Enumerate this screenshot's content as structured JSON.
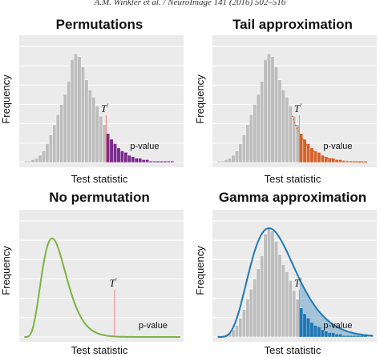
{
  "header": {
    "citation": "A.M. Winkler et al. / NeuroImage 141 (2016) 502–516"
  },
  "labels": {
    "statistic_marker": "T",
    "pvalue": "p-value"
  },
  "colors": {
    "bars": "#bdbdbd",
    "bar_edge": "#ffffff",
    "panel_bg": "#ebebeb",
    "grid": "#ffffff",
    "marker_line": "#f08080",
    "purple": "#7a2b8c",
    "orange": "#d4622a",
    "green": "#7cb342",
    "blue": "#1f78b4"
  },
  "chart_data": [
    {
      "type": "bar",
      "title": "Permutations",
      "xlabel": "Test statistic",
      "ylabel": "Frequency",
      "style": "histogram with right tail beyond T shaded purple",
      "values": [
        1,
        1,
        2,
        3,
        5,
        8,
        13,
        19,
        26,
        33,
        40,
        47,
        56,
        71,
        75,
        73,
        66,
        57,
        50,
        45,
        39,
        32,
        26,
        20,
        16,
        13,
        10,
        8,
        7,
        5,
        4,
        3,
        3,
        2,
        2,
        1,
        1,
        1,
        1,
        1,
        1,
        1
      ],
      "ylim": [
        0,
        80
      ],
      "observed_statistic_bin": 23,
      "tail_color": "purple"
    },
    {
      "type": "bar",
      "title": "Tail approximation",
      "xlabel": "Test statistic",
      "ylabel": "Frequency",
      "style": "histogram with generalized Pareto fit to the tail, shaded orange beyond T",
      "values": [
        1,
        1,
        2,
        3,
        5,
        8,
        13,
        19,
        26,
        33,
        40,
        47,
        56,
        71,
        75,
        73,
        66,
        57,
        50,
        45,
        39,
        32,
        26,
        20,
        16,
        13,
        10,
        8,
        7,
        5,
        4,
        3,
        3,
        2,
        2,
        1,
        1,
        1,
        1,
        1,
        1,
        1
      ],
      "ylim": [
        0,
        80
      ],
      "observed_statistic_bin": 23,
      "tail_color": "orange"
    },
    {
      "type": "area",
      "title": "No permutation",
      "xlabel": "Test statistic",
      "ylabel": "Frequency",
      "style": "parametric density curve only, area beyond T shaded green",
      "distribution": {
        "shape": 6,
        "peak_x": 0.2,
        "curve_color": "green"
      },
      "observed_statistic_x": 0.58
    },
    {
      "type": "bar",
      "title": "Gamma approximation",
      "xlabel": "Test statistic",
      "ylabel": "Frequency",
      "style": "histogram with fitted gamma curve, area beyond T shaded blue",
      "values": [
        1,
        1,
        2,
        3,
        5,
        8,
        13,
        19,
        26,
        33,
        40,
        47,
        56,
        71,
        75,
        73,
        66,
        57,
        50,
        45,
        39,
        32,
        26,
        20,
        16,
        13,
        10,
        8,
        7,
        5,
        4,
        3,
        3,
        2,
        2,
        1,
        1,
        1,
        1,
        1,
        1,
        1
      ],
      "ylim": [
        0,
        80
      ],
      "observed_statistic_bin": 23,
      "tail_color": "blue",
      "distribution": {
        "shape": 6,
        "curve_color": "blue"
      }
    }
  ]
}
